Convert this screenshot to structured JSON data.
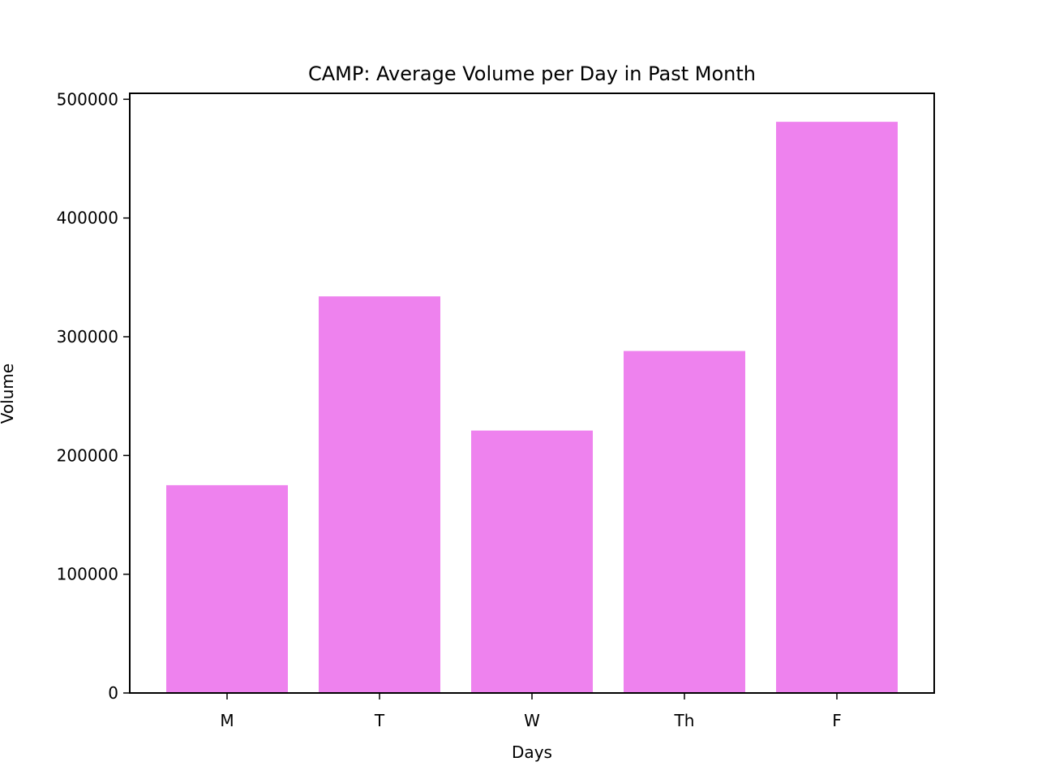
{
  "chart_data": {
    "type": "bar",
    "title": "CAMP: Average Volume per Day in Past Month",
    "xlabel": "Days",
    "ylabel": "Volume",
    "categories": [
      "M",
      "T",
      "W",
      "Th",
      "F"
    ],
    "values": [
      175000,
      334000,
      221000,
      288000,
      481000
    ],
    "ylim": [
      0,
      505000
    ],
    "yticks": [
      0,
      100000,
      200000,
      300000,
      400000,
      500000
    ],
    "ytick_labels": [
      "0",
      "100000",
      "200000",
      "300000",
      "400000",
      "500000"
    ],
    "bar_color": "#ee82ee",
    "grid": false,
    "legend": "none"
  }
}
